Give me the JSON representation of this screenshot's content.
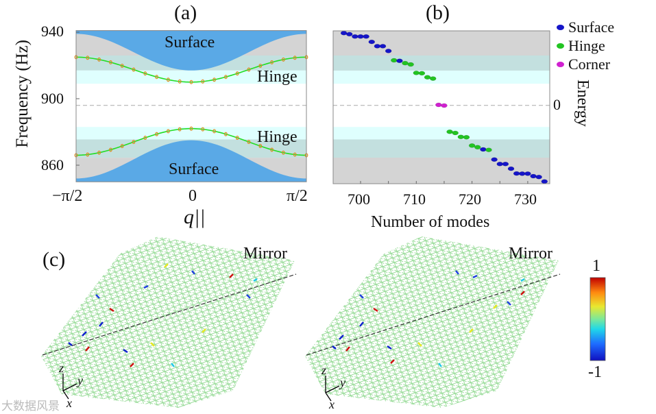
{
  "panels": {
    "a": "(a)",
    "b": "(b)",
    "c": "(c)"
  },
  "chart_data": [
    {
      "type": "area",
      "title": "(a)",
      "xlabel": "q||",
      "ylabel": "Frequency (Hz)",
      "xlim": [
        -1.5708,
        1.5708
      ],
      "ylim": [
        850,
        941
      ],
      "xticks": [
        "−π/2",
        "0",
        "π/2"
      ],
      "yticks": [
        {
          "value": 940,
          "label": "940"
        },
        {
          "value": 900,
          "label": "900"
        },
        {
          "value": 860,
          "label": "860"
        }
      ],
      "reference_line": 896,
      "bands": [
        {
          "name": "surface-gap-gray-upper",
          "from": 917,
          "to": 940,
          "color": "#d4d4d4"
        },
        {
          "name": "hinge-teal-upper",
          "from": 917,
          "to": 926,
          "color": "#c3e0df"
        },
        {
          "name": "hinge-cyan-upper",
          "from": 909,
          "to": 917,
          "color": "#dffffe"
        },
        {
          "name": "hinge-cyan-lower",
          "from": 875.5,
          "to": 883,
          "color": "#dffffe"
        },
        {
          "name": "hinge-teal-lower",
          "from": 864.5,
          "to": 875.5,
          "color": "#c3e0df"
        },
        {
          "name": "surface-gap-gray-lower",
          "from": 850,
          "to": 864.5,
          "color": "#d4d4d4"
        }
      ],
      "surface_upper": {
        "center": 917,
        "edge": 939
      },
      "surface_lower": {
        "center": 875,
        "edge": 852
      },
      "series": [
        {
          "name": "Hinge upper",
          "center": 910,
          "edge": 925,
          "color": "#22dd22"
        },
        {
          "name": "Hinge lower",
          "center": 882,
          "edge": 866,
          "color": "#22dd22"
        }
      ],
      "annotations": [
        "Surface",
        "Hinge",
        "Hinge",
        "Surface"
      ],
      "colors": {
        "surface": "#5aa9e6",
        "marker": "#e08a1e"
      }
    },
    {
      "type": "scatter",
      "title": "(b)",
      "xlabel": "Number of modes",
      "ylabel": "Energy",
      "ytick_label": "0",
      "xlim": [
        697.3,
        734.5
      ],
      "xticks": [
        700,
        710,
        720,
        730
      ],
      "legend": [
        {
          "label": "Surface",
          "color": "#1515c8"
        },
        {
          "label": "Hinge",
          "color": "#22c422"
        },
        {
          "label": "Corner",
          "color": "#d020d0"
        }
      ],
      "legend_position": "right-outside-top",
      "points": [
        [
          697,
          939.5,
          "Surface"
        ],
        [
          698,
          938.8,
          "Surface"
        ],
        [
          699,
          937.4,
          "Surface"
        ],
        [
          700,
          937.4,
          "Surface"
        ],
        [
          701,
          937.4,
          "Surface"
        ],
        [
          702,
          934.2,
          "Surface"
        ],
        [
          703,
          931.6,
          "Surface"
        ],
        [
          704,
          931.6,
          "Surface"
        ],
        [
          705,
          928.7,
          "Surface"
        ],
        [
          706,
          923.1,
          "Hinge"
        ],
        [
          707,
          922.8,
          "Surface"
        ],
        [
          708,
          921.4,
          "Hinge"
        ],
        [
          709,
          920.6,
          "Hinge"
        ],
        [
          710,
          915.5,
          "Hinge"
        ],
        [
          711,
          915.3,
          "Hinge"
        ],
        [
          712,
          912.9,
          "Hinge"
        ],
        [
          713,
          912.1,
          "Hinge"
        ],
        [
          714,
          896.3,
          "Corner"
        ],
        [
          715,
          895.9,
          "Corner"
        ],
        [
          716,
          880.1,
          "Hinge"
        ],
        [
          717,
          879.4,
          "Hinge"
        ],
        [
          718,
          877.0,
          "Hinge"
        ],
        [
          719,
          876.8,
          "Hinge"
        ],
        [
          720,
          871.8,
          "Hinge"
        ],
        [
          721,
          870.8,
          "Hinge"
        ],
        [
          722,
          869.5,
          "Surface"
        ],
        [
          723,
          869.2,
          "Hinge"
        ],
        [
          724,
          863.4,
          "Surface"
        ],
        [
          725,
          860.7,
          "Surface"
        ],
        [
          726,
          860.7,
          "Surface"
        ],
        [
          727,
          857.9,
          "Surface"
        ],
        [
          728,
          855.0,
          "Surface"
        ],
        [
          729,
          854.9,
          "Surface"
        ],
        [
          730,
          854.9,
          "Surface"
        ],
        [
          731,
          853.4,
          "Surface"
        ],
        [
          732,
          852.9,
          "Surface"
        ],
        [
          733,
          850.2,
          "Surface"
        ]
      ]
    }
  ],
  "panel_c": {
    "mirror_label_left": "Mirror",
    "mirror_label_right": "Mirror",
    "axes": {
      "z": "z",
      "y": "y",
      "x": "x"
    },
    "colorbar": {
      "max": "1",
      "min": "-1"
    }
  },
  "watermark": "大数据风景"
}
